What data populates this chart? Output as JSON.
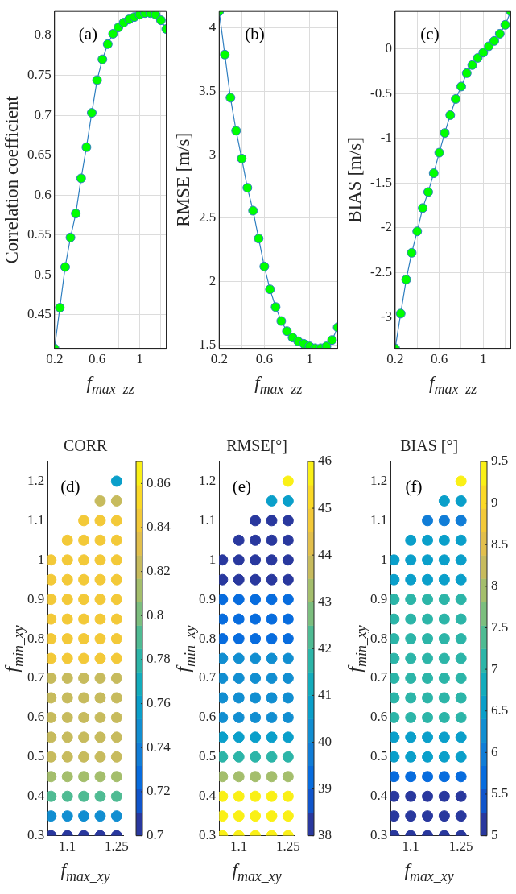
{
  "chart_data": [
    {
      "type": "line",
      "xlabel": "f$_{max_zz}$",
      "ylabel": "Correlation coefficient",
      "annotations": [
        "(a)"
      ],
      "grid": true,
      "marker": "circle",
      "line_style": "solid",
      "xlim": [
        0.2,
        1.25
      ],
      "xticks": [
        0.2,
        {
          "value": 0.4,
          "label": null
        },
        0.6,
        {
          "value": 0.8,
          "label": null
        },
        1,
        {
          "value": 1.2,
          "label": null
        }
      ],
      "ylim": [
        0.408,
        0.83
      ],
      "yticks": [
        0.45,
        0.5,
        0.55,
        0.6,
        0.65,
        0.7,
        0.75,
        0.8
      ],
      "series": [
        {
          "color": "#2f7fc0",
          "colors": [
            "#00ff00",
            "#00ff00",
            "#00ff00",
            "#00ff00",
            "#00ff00",
            "#00ff00",
            "#00ff00",
            "#00ff00",
            "#00ff00",
            "#00ff00",
            "#00ff00",
            "#00ff00",
            "#00ff00",
            "#00ff00",
            "#00ff00",
            "#00ff00",
            "#00ff00",
            "#00ff00",
            "#00ff00",
            "#00ff00",
            "#00ff00",
            "#00ff00"
          ],
          "x": [
            0.2,
            0.25,
            0.3,
            0.35,
            0.4,
            0.45,
            0.5,
            0.55,
            0.6,
            0.65,
            0.7,
            0.75,
            0.8,
            0.85,
            0.9,
            0.95,
            1.0,
            1.05,
            1.1,
            1.15,
            1.2,
            1.25
          ],
          "values": [
            0.408,
            0.459,
            0.51,
            0.547,
            0.577,
            0.621,
            0.66,
            0.703,
            0.744,
            0.77,
            0.789,
            0.802,
            0.81,
            0.816,
            0.82,
            0.823,
            0.826,
            0.828,
            0.828,
            0.826,
            0.819,
            0.808
          ]
        }
      ]
    },
    {
      "type": "line",
      "xlabel": "f$_{max_zz}$",
      "ylabel": "RMSE [m/s]",
      "annotations": [
        "(b)"
      ],
      "grid": true,
      "marker": "circle",
      "line_style": "solid",
      "xlim": [
        0.2,
        1.25
      ],
      "xticks": [
        0.2,
        {
          "value": 0.4,
          "label": null
        },
        0.6,
        {
          "value": 0.8,
          "label": null
        },
        1,
        {
          "value": 1.2,
          "label": null
        }
      ],
      "ylim": [
        1.474,
        4.13
      ],
      "yticks": [
        1.5,
        2,
        2.5,
        3,
        3.5,
        4
      ],
      "series": [
        {
          "color": "#2f7fc0",
          "colors": [
            "#00ff00",
            "#00ff00",
            "#00ff00",
            "#00ff00",
            "#00ff00",
            "#00ff00",
            "#00ff00",
            "#00ff00",
            "#00ff00",
            "#00ff00",
            "#00ff00",
            "#00ff00",
            "#00ff00",
            "#00ff00",
            "#00ff00",
            "#00ff00",
            "#00ff00",
            "#00ff00",
            "#00ff00",
            "#00ff00",
            "#00ff00",
            "#00ff00"
          ],
          "x": [
            0.2,
            0.25,
            0.3,
            0.35,
            0.4,
            0.45,
            0.5,
            0.55,
            0.6,
            0.65,
            0.7,
            0.75,
            0.8,
            0.85,
            0.9,
            0.95,
            1.0,
            1.05,
            1.1,
            1.15,
            1.2,
            1.25
          ],
          "values": [
            4.13,
            3.79,
            3.45,
            3.19,
            2.97,
            2.74,
            2.56,
            2.34,
            2.12,
            1.94,
            1.8,
            1.69,
            1.61,
            1.56,
            1.53,
            1.51,
            1.49,
            1.475,
            1.475,
            1.49,
            1.54,
            1.64
          ]
        }
      ]
    },
    {
      "type": "line",
      "xlabel": "f$_{max_zz}$",
      "ylabel": "BIAS [m/s]",
      "annotations": [
        "(c)"
      ],
      "grid": true,
      "marker": "circle",
      "line_style": "solid",
      "xlim": [
        0.2,
        1.25
      ],
      "xticks": [
        0.2,
        {
          "value": 0.4,
          "label": null
        },
        0.6,
        {
          "value": 0.8,
          "label": null
        },
        1,
        {
          "value": 1.2,
          "label": null
        }
      ],
      "ylim": [
        -3.35,
        0.42
      ],
      "yticks": [
        -3,
        -2.5,
        -2,
        -1.5,
        -1,
        -0.5,
        0
      ],
      "series": [
        {
          "color": "#2f7fc0",
          "colors": [
            "#00ff00",
            "#00ff00",
            "#00ff00",
            "#00ff00",
            "#00ff00",
            "#00ff00",
            "#00ff00",
            "#00ff00",
            "#00ff00",
            "#00ff00",
            "#00ff00",
            "#00ff00",
            "#00ff00",
            "#00ff00",
            "#00ff00",
            "#00ff00",
            "#00ff00",
            "#00ff00",
            "#00ff00",
            "#00ff00",
            "#00ff00",
            "#00ff00"
          ],
          "x": [
            0.2,
            0.25,
            0.3,
            0.35,
            0.4,
            0.45,
            0.5,
            0.55,
            0.6,
            0.65,
            0.7,
            0.75,
            0.8,
            0.85,
            0.9,
            0.95,
            1.0,
            1.05,
            1.1,
            1.15,
            1.2,
            1.25
          ],
          "values": [
            -3.35,
            -2.96,
            -2.58,
            -2.28,
            -2.04,
            -1.78,
            -1.6,
            -1.39,
            -1.16,
            -0.94,
            -0.74,
            -0.56,
            -0.42,
            -0.27,
            -0.18,
            -0.1,
            -0.04,
            0.03,
            0.09,
            0.17,
            0.27,
            0.42
          ]
        }
      ]
    },
    {
      "type": "scatter",
      "title": "CORR",
      "xlabel": "f$_{max_xy}$",
      "ylabel": "f$_{min_xy}$",
      "annotations": [
        "(d)"
      ],
      "marker": "circle",
      "xlim": [
        1.04,
        1.27
      ],
      "xticks": [
        1.1,
        1.25
      ],
      "ylim": [
        0.3,
        1.25
      ],
      "yticks": [
        0.3,
        0.4,
        0.5,
        0.6,
        0.7,
        0.8,
        0.9,
        1,
        1.1,
        1.2
      ],
      "clim": [
        0.7,
        0.87
      ],
      "cticks": [
        0.7,
        0.72,
        0.74,
        0.76,
        0.78,
        0.8,
        0.82,
        0.84,
        0.86
      ],
      "series": [
        {
          "x": [
            1.05,
            1.1,
            1.15,
            1.2,
            1.25,
            1.05,
            1.1,
            1.15,
            1.2,
            1.25,
            1.05,
            1.1,
            1.15,
            1.2,
            1.25,
            1.05,
            1.1,
            1.15,
            1.2,
            1.25,
            1.05,
            1.1,
            1.15,
            1.2,
            1.25,
            1.05,
            1.1,
            1.15,
            1.2,
            1.25,
            1.05,
            1.1,
            1.15,
            1.2,
            1.25,
            1.05,
            1.1,
            1.15,
            1.2,
            1.25,
            1.05,
            1.1,
            1.15,
            1.2,
            1.25,
            1.05,
            1.1,
            1.15,
            1.2,
            1.25,
            1.05,
            1.1,
            1.15,
            1.2,
            1.25,
            1.05,
            1.1,
            1.15,
            1.2,
            1.25,
            1.05,
            1.1,
            1.15,
            1.2,
            1.25,
            1.05,
            1.1,
            1.15,
            1.2,
            1.25,
            1.05,
            1.1,
            1.15,
            1.2,
            1.25,
            1.1,
            1.15,
            1.2,
            1.25,
            1.15,
            1.2,
            1.25,
            1.2,
            1.25,
            1.25
          ],
          "values": [
            0.3,
            0.3,
            0.3,
            0.3,
            0.3,
            0.35,
            0.35,
            0.35,
            0.35,
            0.35,
            0.4,
            0.4,
            0.4,
            0.4,
            0.4,
            0.45,
            0.45,
            0.45,
            0.45,
            0.45,
            0.5,
            0.5,
            0.5,
            0.5,
            0.5,
            0.55,
            0.55,
            0.55,
            0.55,
            0.55,
            0.6,
            0.6,
            0.6,
            0.6,
            0.6,
            0.65,
            0.65,
            0.65,
            0.65,
            0.65,
            0.7,
            0.7,
            0.7,
            0.7,
            0.7,
            0.75,
            0.75,
            0.75,
            0.75,
            0.75,
            0.8,
            0.8,
            0.8,
            0.8,
            0.8,
            0.85,
            0.85,
            0.85,
            0.85,
            0.85,
            0.9,
            0.9,
            0.9,
            0.9,
            0.9,
            0.95,
            0.95,
            0.95,
            0.95,
            0.95,
            1.0,
            1.0,
            1.0,
            1.0,
            1.0,
            1.05,
            1.05,
            1.05,
            1.05,
            1.1,
            1.1,
            1.1,
            1.15,
            1.15,
            1.2
          ],
          "cvalues": [
            0.705,
            0.705,
            0.705,
            0.705,
            0.705,
            0.745,
            0.745,
            0.745,
            0.745,
            0.745,
            0.79,
            0.79,
            0.79,
            0.79,
            0.79,
            0.812,
            0.812,
            0.812,
            0.812,
            0.812,
            0.825,
            0.825,
            0.825,
            0.825,
            0.825,
            0.825,
            0.825,
            0.825,
            0.825,
            0.825,
            0.825,
            0.825,
            0.825,
            0.825,
            0.825,
            0.825,
            0.825,
            0.825,
            0.825,
            0.825,
            0.825,
            0.825,
            0.825,
            0.825,
            0.825,
            0.84,
            0.84,
            0.84,
            0.84,
            0.84,
            0.84,
            0.84,
            0.84,
            0.84,
            0.84,
            0.84,
            0.84,
            0.84,
            0.84,
            0.84,
            0.84,
            0.84,
            0.84,
            0.84,
            0.84,
            0.84,
            0.84,
            0.84,
            0.84,
            0.84,
            0.84,
            0.84,
            0.84,
            0.84,
            0.84,
            0.84,
            0.84,
            0.84,
            0.84,
            0.84,
            0.84,
            0.84,
            0.825,
            0.825,
            0.76
          ]
        }
      ]
    },
    {
      "type": "scatter",
      "title": "RMSE[°]",
      "xlabel": "f$_{max_xy}$",
      "ylabel": "f$_{min_xy}$",
      "annotations": [
        "(e)"
      ],
      "marker": "circle",
      "xlim": [
        1.04,
        1.27
      ],
      "xticks": [
        1.1,
        1.25
      ],
      "ylim": [
        0.3,
        1.25
      ],
      "yticks": [
        0.3,
        0.4,
        0.5,
        0.6,
        0.7,
        0.8,
        0.9,
        1,
        1.1,
        1.2
      ],
      "clim": [
        38,
        46
      ],
      "cticks": [
        38,
        39,
        40,
        41,
        42,
        43,
        44,
        45,
        46
      ],
      "series": [
        {
          "x": [
            1.05,
            1.1,
            1.15,
            1.2,
            1.25,
            1.05,
            1.1,
            1.15,
            1.2,
            1.25,
            1.05,
            1.1,
            1.15,
            1.2,
            1.25,
            1.05,
            1.1,
            1.15,
            1.2,
            1.25,
            1.05,
            1.1,
            1.15,
            1.2,
            1.25,
            1.05,
            1.1,
            1.15,
            1.2,
            1.25,
            1.05,
            1.1,
            1.15,
            1.2,
            1.25,
            1.05,
            1.1,
            1.15,
            1.2,
            1.25,
            1.05,
            1.1,
            1.15,
            1.2,
            1.25,
            1.05,
            1.1,
            1.15,
            1.2,
            1.25,
            1.05,
            1.1,
            1.15,
            1.2,
            1.25,
            1.05,
            1.1,
            1.15,
            1.2,
            1.25,
            1.05,
            1.1,
            1.15,
            1.2,
            1.25,
            1.05,
            1.1,
            1.15,
            1.2,
            1.25,
            1.05,
            1.1,
            1.15,
            1.2,
            1.25,
            1.1,
            1.15,
            1.2,
            1.25,
            1.15,
            1.2,
            1.25,
            1.2,
            1.25,
            1.25
          ],
          "values": [
            0.3,
            0.3,
            0.3,
            0.3,
            0.3,
            0.35,
            0.35,
            0.35,
            0.35,
            0.35,
            0.4,
            0.4,
            0.4,
            0.4,
            0.4,
            0.45,
            0.45,
            0.45,
            0.45,
            0.45,
            0.5,
            0.5,
            0.5,
            0.5,
            0.5,
            0.55,
            0.55,
            0.55,
            0.55,
            0.55,
            0.6,
            0.6,
            0.6,
            0.6,
            0.6,
            0.65,
            0.65,
            0.65,
            0.65,
            0.65,
            0.7,
            0.7,
            0.7,
            0.7,
            0.7,
            0.75,
            0.75,
            0.75,
            0.75,
            0.75,
            0.8,
            0.8,
            0.8,
            0.8,
            0.8,
            0.85,
            0.85,
            0.85,
            0.85,
            0.85,
            0.9,
            0.9,
            0.9,
            0.9,
            0.9,
            0.95,
            0.95,
            0.95,
            0.95,
            0.95,
            1.0,
            1.0,
            1.0,
            1.0,
            1.0,
            1.05,
            1.05,
            1.05,
            1.05,
            1.1,
            1.1,
            1.1,
            1.15,
            1.15,
            1.2
          ],
          "cvalues": [
            45.8,
            45.8,
            45.8,
            45.8,
            45.8,
            45.8,
            45.8,
            45.8,
            45.8,
            45.8,
            45.8,
            45.8,
            45.8,
            45.8,
            45.8,
            43.2,
            43.2,
            43.2,
            43.2,
            43.2,
            41.7,
            41.7,
            41.7,
            41.7,
            41.7,
            40.7,
            40.7,
            40.7,
            40.7,
            40.7,
            40.2,
            40.2,
            40.2,
            40.2,
            40.2,
            40.2,
            40.2,
            40.2,
            40.2,
            40.2,
            40.2,
            40.2,
            40.2,
            40.2,
            40.2,
            40.2,
            40.2,
            40.2,
            40.2,
            40.2,
            39.3,
            39.3,
            39.3,
            39.3,
            39.3,
            39.3,
            39.3,
            39.3,
            39.3,
            39.3,
            39.3,
            39.3,
            39.3,
            39.3,
            39.3,
            38.3,
            38.3,
            38.3,
            38.3,
            38.3,
            38.3,
            38.3,
            38.3,
            38.3,
            38.3,
            38.3,
            38.3,
            38.3,
            38.3,
            38.3,
            38.3,
            38.3,
            40.5,
            40.5,
            45.8
          ]
        }
      ]
    },
    {
      "type": "scatter",
      "title": "BIAS [°]",
      "xlabel": "f$_{max_xy}$",
      "ylabel": "f$_{min_xy}$",
      "annotations": [
        "(f)"
      ],
      "marker": "circle",
      "xlim": [
        1.04,
        1.27
      ],
      "xticks": [
        1.1,
        1.25
      ],
      "ylim": [
        0.3,
        1.25
      ],
      "yticks": [
        0.3,
        0.4,
        0.5,
        0.6,
        0.7,
        0.8,
        0.9,
        1,
        1.1,
        1.2
      ],
      "clim": [
        5,
        9.5
      ],
      "cticks": [
        5,
        5.5,
        6,
        6.5,
        7,
        7.5,
        8,
        8.5,
        9,
        9.5
      ],
      "series": [
        {
          "x": [
            1.05,
            1.1,
            1.15,
            1.2,
            1.25,
            1.05,
            1.1,
            1.15,
            1.2,
            1.25,
            1.05,
            1.1,
            1.15,
            1.2,
            1.25,
            1.05,
            1.1,
            1.15,
            1.2,
            1.25,
            1.05,
            1.1,
            1.15,
            1.2,
            1.25,
            1.05,
            1.1,
            1.15,
            1.2,
            1.25,
            1.05,
            1.1,
            1.15,
            1.2,
            1.25,
            1.05,
            1.1,
            1.15,
            1.2,
            1.25,
            1.05,
            1.1,
            1.15,
            1.2,
            1.25,
            1.05,
            1.1,
            1.15,
            1.2,
            1.25,
            1.05,
            1.1,
            1.15,
            1.2,
            1.25,
            1.05,
            1.1,
            1.15,
            1.2,
            1.25,
            1.05,
            1.1,
            1.15,
            1.2,
            1.25,
            1.05,
            1.1,
            1.15,
            1.2,
            1.25,
            1.05,
            1.1,
            1.15,
            1.2,
            1.25,
            1.1,
            1.15,
            1.2,
            1.25,
            1.15,
            1.2,
            1.25,
            1.2,
            1.25,
            1.25
          ],
          "values": [
            0.3,
            0.3,
            0.3,
            0.3,
            0.3,
            0.35,
            0.35,
            0.35,
            0.35,
            0.35,
            0.4,
            0.4,
            0.4,
            0.4,
            0.4,
            0.45,
            0.45,
            0.45,
            0.45,
            0.45,
            0.5,
            0.5,
            0.5,
            0.5,
            0.5,
            0.55,
            0.55,
            0.55,
            0.55,
            0.55,
            0.6,
            0.6,
            0.6,
            0.6,
            0.6,
            0.65,
            0.65,
            0.65,
            0.65,
            0.65,
            0.7,
            0.7,
            0.7,
            0.7,
            0.7,
            0.75,
            0.75,
            0.75,
            0.75,
            0.75,
            0.8,
            0.8,
            0.8,
            0.8,
            0.8,
            0.85,
            0.85,
            0.85,
            0.85,
            0.85,
            0.9,
            0.9,
            0.9,
            0.9,
            0.9,
            0.95,
            0.95,
            0.95,
            0.95,
            0.95,
            1.0,
            1.0,
            1.0,
            1.0,
            1.0,
            1.05,
            1.05,
            1.05,
            1.05,
            1.1,
            1.1,
            1.1,
            1.15,
            1.15,
            1.2
          ],
          "cvalues": [
            5.2,
            5.2,
            5.2,
            5.2,
            5.2,
            5.2,
            5.2,
            5.2,
            5.2,
            5.2,
            5.2,
            5.2,
            5.2,
            5.2,
            5.2,
            5.7,
            5.7,
            5.7,
            5.7,
            5.7,
            6.6,
            6.6,
            6.6,
            6.6,
            6.6,
            6.6,
            6.6,
            6.6,
            6.6,
            6.6,
            7.0,
            7.0,
            7.0,
            7.0,
            7.0,
            7.0,
            7.0,
            7.0,
            7.0,
            7.0,
            7.0,
            7.0,
            7.0,
            7.0,
            7.0,
            7.0,
            7.0,
            7.0,
            7.0,
            7.0,
            7.0,
            7.0,
            7.0,
            7.0,
            7.0,
            7.0,
            7.0,
            7.0,
            7.0,
            7.0,
            7.0,
            7.0,
            7.0,
            7.0,
            7.0,
            6.6,
            6.6,
            6.6,
            6.6,
            6.6,
            6.6,
            6.6,
            6.6,
            6.6,
            6.6,
            6.6,
            6.6,
            6.6,
            6.6,
            6.1,
            6.1,
            6.1,
            6.6,
            6.6,
            9.4
          ]
        }
      ]
    }
  ]
}
